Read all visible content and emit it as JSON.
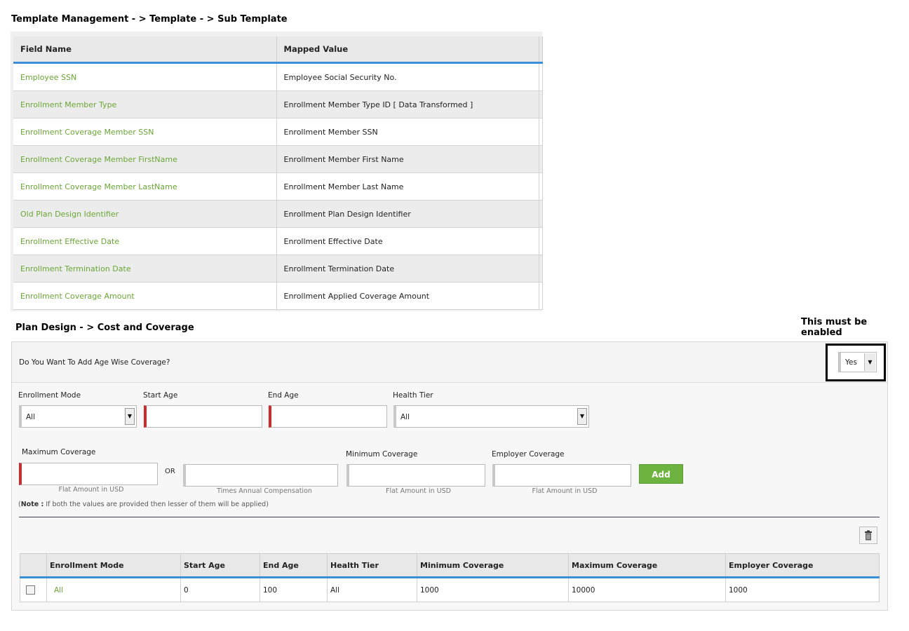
{
  "breadcrumb_top": "Template Management - > Template - > Sub Template",
  "mapping_table": {
    "headers": [
      "Field Name",
      "Mapped Value"
    ],
    "rows": [
      {
        "field": "Employee SSN",
        "value": "Employee Social Security No."
      },
      {
        "field": "Enrollment Member Type",
        "value": "Enrollment Member Type ID [ Data Transformed ]"
      },
      {
        "field": "Enrollment Coverage Member SSN",
        "value": "Enrollment Member SSN"
      },
      {
        "field": "Enrollment Coverage Member FirstName",
        "value": "Enrollment Member First Name"
      },
      {
        "field": "Enrollment Coverage Member LastName",
        "value": "Enrollment Member Last Name"
      },
      {
        "field": "Old Plan Design Identifier",
        "value": "Enrollment Plan Design Identifier"
      },
      {
        "field": "Enrollment Effective Date",
        "value": "Enrollment Effective Date"
      },
      {
        "field": "Enrollment Termination Date",
        "value": "Enrollment Termination Date"
      },
      {
        "field": "Enrollment Coverage Amount",
        "value": "Enrollment Applied Coverage Amount"
      }
    ]
  },
  "breadcrumb_bottom": "Plan Design - > Cost and Coverage",
  "annotation": "This must be enabled",
  "age_wise": {
    "question": "Do You Want To Add Age Wise Coverage?",
    "selected": "Yes"
  },
  "form": {
    "enrollment_mode_label": "Enrollment Mode",
    "enrollment_mode_value": "All",
    "start_age_label": "Start Age",
    "end_age_label": "End Age",
    "health_tier_label": "Health Tier",
    "health_tier_value": "All",
    "max_coverage_label": "Maximum Coverage",
    "max_coverage_hint": "Flat Amount in USD",
    "or_text": "OR",
    "times_annual_hint": "Times Annual Compensation",
    "min_coverage_label": "Minimum Coverage",
    "min_coverage_hint": "Flat Amount in USD",
    "employer_coverage_label": "Employer Coverage",
    "employer_coverage_hint": "Flat Amount in USD",
    "add_label": "Add",
    "note_bold": "Note :",
    "note_text": "If both the values are provided then lesser of them will be applied)",
    "note_open": "("
  },
  "results_table": {
    "headers": [
      "Enrollment Mode",
      "Start Age",
      "End Age",
      "Health Tier",
      "Minimum Coverage",
      "Maximum Coverage",
      "Employer Coverage"
    ],
    "rows": [
      {
        "enrollment_mode": "All",
        "start_age": "0",
        "end_age": "100",
        "health_tier": "All",
        "min_coverage": "1000",
        "max_coverage": "10000",
        "employer_coverage": "1000"
      }
    ]
  },
  "colors": {
    "accent_blue": "#3b8fd8",
    "field_green": "#6aa535",
    "button_green": "#6db33f",
    "required_red": "#d02a2a"
  },
  "icons": [
    "dropdown-arrow-icon",
    "trash-icon",
    "checkbox-icon"
  ]
}
